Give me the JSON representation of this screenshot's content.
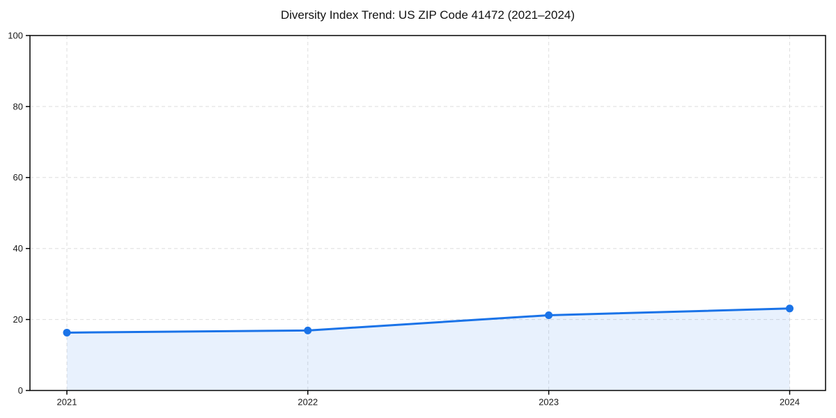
{
  "chart_data": {
    "type": "line",
    "title": "Diversity Index Trend: US ZIP Code 41472 (2021–2024)",
    "x": [
      2021,
      2022,
      2023,
      2024
    ],
    "series": [
      {
        "name": "Diversity Index",
        "values": [
          16.3,
          16.9,
          21.2,
          23.1
        ]
      }
    ],
    "xlabel": "",
    "ylabel": "",
    "ylim": [
      0,
      100
    ],
    "yticks": [
      0,
      20,
      40,
      60,
      80,
      100
    ],
    "xtick_labels": [
      "2021",
      "2022",
      "2023",
      "2024"
    ],
    "grid": true,
    "grid_style": "dashed",
    "legend_position": "none",
    "marker": "circle",
    "area_under_line": true
  },
  "colors": {
    "line": "#1a73e8",
    "marker": "#1a73e8",
    "area_fill": "rgba(26,115,232,0.10)",
    "grid": "#dedede",
    "spine": "#000000",
    "tick_text": "#1a1a1a",
    "title_text": "#111111",
    "background": "#ffffff"
  }
}
